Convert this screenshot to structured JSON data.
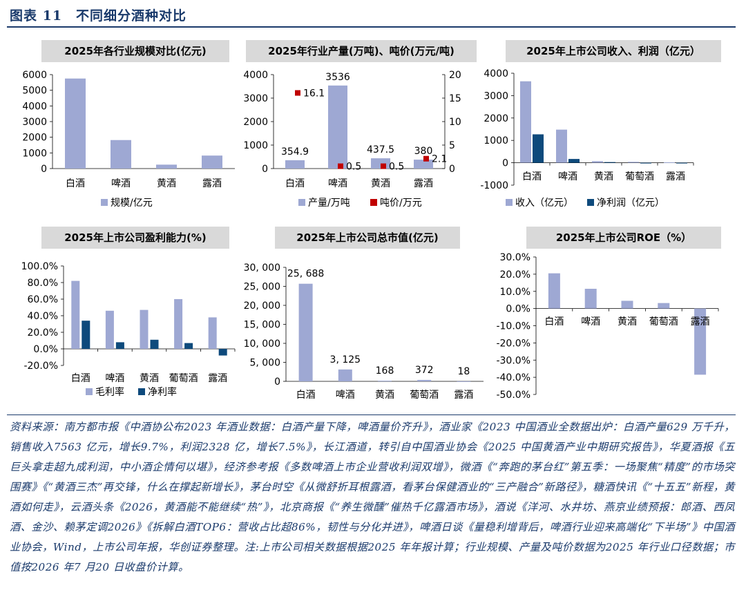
{
  "figure_title": "图表 11　不同细分酒种对比",
  "colors": {
    "bar_light": "#9ea8d3",
    "bar_dark": "#0e4a7c",
    "marker_red": "#c00000",
    "title_blue": "#1a3a6b",
    "panel_title_bg": "#d9d9d9"
  },
  "chart_data": [
    {
      "id": "c1",
      "type": "bar",
      "title": "2025年各行业规模对比(亿元)",
      "categories": [
        "白酒",
        "啤酒",
        "黄酒",
        "露酒"
      ],
      "series": [
        {
          "name": "规模/亿元",
          "values": [
            5750,
            1820,
            250,
            830
          ]
        }
      ],
      "ylim": [
        0,
        6000
      ],
      "yticks": [
        "0",
        "1000",
        "2000",
        "3000",
        "4000",
        "5000",
        "6000"
      ],
      "legend_position": "bottom"
    },
    {
      "id": "c2",
      "type": "bar",
      "title": "2025年行业产量(万吨)、吨价(万元/吨)",
      "categories": [
        "白酒",
        "啤酒",
        "黄酒",
        "露酒"
      ],
      "series": [
        {
          "name": "产量/万吨",
          "values": [
            354.9,
            3536,
            437.5,
            380
          ],
          "labels": [
            "354.9",
            "3536",
            "437.5",
            "380"
          ],
          "axis": "left",
          "style": "bar"
        },
        {
          "name": "吨价/万元",
          "values": [
            16.1,
            0.5,
            0.5,
            2.1
          ],
          "labels": [
            "16.1",
            "0.5",
            "0.5",
            "2.1"
          ],
          "axis": "right",
          "style": "marker"
        }
      ],
      "ylim": [
        0,
        4000
      ],
      "yticks": [
        "0",
        "1000",
        "2000",
        "3000",
        "4000"
      ],
      "y2lim": [
        0,
        20
      ],
      "y2ticks": [
        "0",
        "5",
        "10",
        "15",
        "20"
      ],
      "legend_position": "bottom"
    },
    {
      "id": "c3",
      "type": "bar",
      "title": "2025年上市公司收入、利润（亿元）",
      "categories": [
        "白酒",
        "啤酒",
        "黄酒",
        "葡萄酒",
        "露酒"
      ],
      "series": [
        {
          "name": "收入（亿元）",
          "values": [
            3640,
            1480,
            70,
            40,
            20
          ]
        },
        {
          "name": "净利润（亿元）",
          "values": [
            1270,
            170,
            30,
            -15,
            -30
          ]
        }
      ],
      "ylim": [
        -1000,
        4000
      ],
      "yticks": [
        "-1000",
        "0",
        "1000",
        "2000",
        "3000",
        "4000"
      ],
      "legend_position": "bottom"
    },
    {
      "id": "c4",
      "type": "bar",
      "title": "2025年上市公司盈利能力(%)",
      "categories": [
        "白酒",
        "啤酒",
        "黄酒",
        "葡萄酒",
        "露酒"
      ],
      "series": [
        {
          "name": "毛利率",
          "values": [
            82,
            46,
            47,
            60,
            38
          ]
        },
        {
          "name": "净利率",
          "values": [
            34,
            8,
            11,
            7,
            -8
          ]
        }
      ],
      "ylim": [
        -20,
        100
      ],
      "yticks": [
        "-20.0%",
        "0.0%",
        "20.0%",
        "40.0%",
        "60.0%",
        "80.0%",
        "100.0%"
      ],
      "legend_position": "bottom"
    },
    {
      "id": "c5",
      "type": "bar",
      "title": "2025年上市公司总市值(亿元)",
      "categories": [
        "白酒",
        "啤酒",
        "黄酒",
        "葡萄酒",
        "露酒"
      ],
      "series": [
        {
          "name": "",
          "values": [
            25688,
            3125,
            168,
            372,
            18
          ],
          "labels": [
            "25, 688",
            "3, 125",
            "168",
            "372",
            "18"
          ]
        }
      ],
      "ylim": [
        0,
        30000
      ],
      "yticks": [
        "0",
        "5, 000",
        "10, 000",
        "15, 000",
        "20, 000",
        "25, 000",
        "30, 000"
      ]
    },
    {
      "id": "c6",
      "type": "bar",
      "title": "2025年上市公司ROE（%）",
      "categories": [
        "白酒",
        "啤酒",
        "黄酒",
        "葡萄酒",
        "露酒"
      ],
      "series": [
        {
          "name": "",
          "values": [
            20.5,
            11.5,
            4.5,
            3.2,
            -38.5
          ]
        }
      ],
      "ylim": [
        -50,
        30
      ],
      "yticks": [
        "-50.0%",
        "-40.0%",
        "-30.0%",
        "-20.0%",
        "-10.0%",
        "0.0%",
        "10.0%",
        "20.0%",
        "30.0%"
      ]
    }
  ],
  "source_note": "资料来源：南方都市报《中酒协公布2023 年酒业数据：白酒产量下降，啤酒量价齐升》，酒业家《2023 中国酒业全数据出炉：白酒产量629 万千升，销售收入7563 亿元，增长9.7%，利润2328 亿，增长7.5%》，长江酒道，转引自中国酒业协会《2025 中国黄酒产业中期研究报告》，华夏酒报《五巨头拿走超九成利润，中小酒企情何以堪》，经济参考报《多数啤酒上市企业营收利润双增》，微酒《“奔跑的茅台红”第五季：一场聚焦“精度”的市场突围赛》《“黄酒三杰”再交锋，什么在撑起新增长》，茅台时空《从微舒折耳根露酒，看茅台保健酒业的“三产融合”新路径》，糖酒快讯《“十五五”新程，黄酒如何走》，云酒头条《2026，黄酒能不能继续“热”》，北京商报《“养生微醺”催热千亿露酒市场》，酒说《洋河、水井坊、燕京业绩预报：郎酒、西凤酒、金沙、赖茅定调2026》《拆解白酒TOP6：营收占比超86%，韧性与分化并进》，啤酒日谈《量稳利增背后，啤酒行业迎来高端化“下半场”》中国酒业协会，Wind，上市公司年报，华创证券整理。注:上市公司相关数据根据2025 年年报计算；行业规模、产量及吨价数据为2025 年行业口径数据；市值按2026 年7 月20 日收盘价计算。"
}
